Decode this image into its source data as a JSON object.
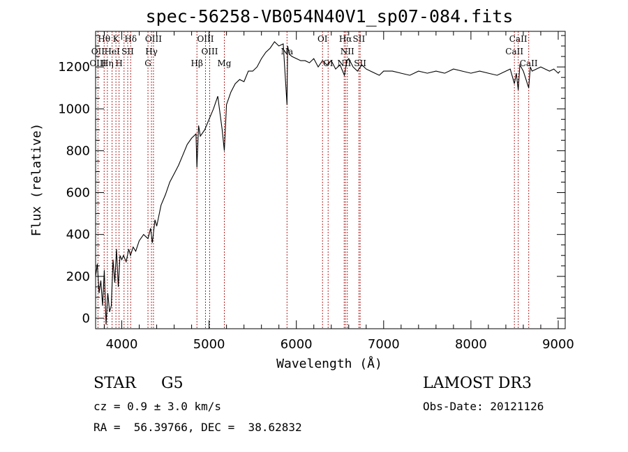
{
  "chart_data": {
    "type": "line",
    "title": "spec-56258-VB054N40V1_sp07-084.fits",
    "xlabel": "Wavelength (Å)",
    "ylabel": "Flux (relative)",
    "xlim": [
      3700,
      9080
    ],
    "ylim": [
      -50,
      1370
    ],
    "xticks": [
      4000,
      5000,
      6000,
      7000,
      8000,
      9000
    ],
    "yticks": [
      0,
      200,
      400,
      600,
      800,
      1000,
      1200
    ],
    "series": [
      {
        "name": "flux",
        "color": "#000000",
        "x": [
          3700,
          3720,
          3740,
          3760,
          3780,
          3800,
          3820,
          3840,
          3860,
          3880,
          3900,
          3920,
          3940,
          3960,
          3980,
          4000,
          4020,
          4050,
          4080,
          4100,
          4130,
          4160,
          4200,
          4250,
          4300,
          4330,
          4350,
          4380,
          4400,
          4450,
          4500,
          4550,
          4600,
          4650,
          4700,
          4750,
          4800,
          4850,
          4861,
          4880,
          4900,
          4950,
          5000,
          5050,
          5100,
          5150,
          5175,
          5200,
          5250,
          5300,
          5350,
          5400,
          5450,
          5500,
          5550,
          5600,
          5650,
          5700,
          5750,
          5800,
          5850,
          5893,
          5900,
          5920,
          5950,
          6000,
          6050,
          6100,
          6150,
          6200,
          6250,
          6300,
          6350,
          6400,
          6450,
          6500,
          6550,
          6563,
          6580,
          6600,
          6650,
          6700,
          6750,
          6800,
          6850,
          6900,
          6950,
          7000,
          7100,
          7200,
          7300,
          7400,
          7500,
          7600,
          7700,
          7800,
          7900,
          8000,
          8100,
          8200,
          8300,
          8400,
          8450,
          8498,
          8520,
          8542,
          8560,
          8600,
          8662,
          8680,
          8700,
          8750,
          8800,
          8850,
          8900,
          8950,
          9000,
          9020
        ],
        "y": [
          200,
          260,
          120,
          180,
          60,
          230,
          -30,
          120,
          30,
          60,
          280,
          170,
          330,
          150,
          300,
          280,
          300,
          270,
          330,
          300,
          340,
          320,
          370,
          400,
          380,
          430,
          360,
          470,
          440,
          540,
          590,
          650,
          690,
          730,
          780,
          830,
          860,
          880,
          720,
          920,
          870,
          900,
          950,
          1000,
          1060,
          900,
          800,
          1020,
          1080,
          1120,
          1140,
          1130,
          1180,
          1180,
          1200,
          1240,
          1270,
          1290,
          1320,
          1300,
          1310,
          1020,
          1300,
          1260,
          1250,
          1240,
          1230,
          1230,
          1220,
          1240,
          1200,
          1230,
          1210,
          1230,
          1190,
          1210,
          1160,
          1190,
          1230,
          1240,
          1200,
          1180,
          1210,
          1190,
          1180,
          1170,
          1160,
          1180,
          1180,
          1170,
          1160,
          1180,
          1170,
          1180,
          1170,
          1190,
          1180,
          1170,
          1180,
          1170,
          1160,
          1180,
          1190,
          1120,
          1170,
          1090,
          1210,
          1180,
          1100,
          1200,
          1180,
          1190,
          1200,
          1190,
          1180,
          1190,
          1170,
          1180
        ]
      }
    ],
    "vlines": [
      3727,
      3798,
      3835,
      3889,
      3933,
      3969,
      4026,
      4068,
      4102,
      4300,
      4340,
      4363,
      4861,
      4959,
      5007,
      5175,
      5893,
      6300,
      6364,
      6548,
      6563,
      6584,
      6717,
      6731,
      8498,
      8542,
      8662
    ],
    "vline_color": "#b22222",
    "line_labels": [
      {
        "text": "Hθ",
        "x": 3798,
        "row": 0
      },
      {
        "text": "K",
        "x": 3933,
        "row": 0
      },
      {
        "text": "Hδ",
        "x": 4102,
        "row": 0
      },
      {
        "text": "OIII",
        "x": 4363,
        "row": 0
      },
      {
        "text": "OIII",
        "x": 4959,
        "row": 0
      },
      {
        "text": "OI",
        "x": 6300,
        "row": 0
      },
      {
        "text": "Hα",
        "x": 6563,
        "row": 0
      },
      {
        "text": "SII",
        "x": 6717,
        "row": 0
      },
      {
        "text": "CaII",
        "x": 8542,
        "row": 0
      },
      {
        "text": "OII",
        "x": 3727,
        "row": 1
      },
      {
        "text": "HeI",
        "x": 3889,
        "row": 1
      },
      {
        "text": "SII",
        "x": 4068,
        "row": 1
      },
      {
        "text": "Hγ",
        "x": 4340,
        "row": 1
      },
      {
        "text": "OIII",
        "x": 5007,
        "row": 1
      },
      {
        "text": "Na",
        "x": 5893,
        "row": 1
      },
      {
        "text": "NII",
        "x": 6584,
        "row": 1
      },
      {
        "text": "CaII",
        "x": 8498,
        "row": 1
      },
      {
        "text": "OIII",
        "x": 3727,
        "row": 2
      },
      {
        "text": "Hη",
        "x": 3835,
        "row": 2
      },
      {
        "text": "H",
        "x": 3969,
        "row": 2
      },
      {
        "text": "G",
        "x": 4300,
        "row": 2
      },
      {
        "text": "Hβ",
        "x": 4861,
        "row": 2
      },
      {
        "text": "Mg",
        "x": 5175,
        "row": 2
      },
      {
        "text": "OI",
        "x": 6364,
        "row": 2
      },
      {
        "text": "NII",
        "x": 6548,
        "row": 2
      },
      {
        "text": "SII",
        "x": 6731,
        "row": 2
      },
      {
        "text": "CaII",
        "x": 8662,
        "row": 2
      }
    ]
  },
  "info": {
    "class_label": "STAR",
    "subclass": "G5",
    "cz": "cz = 0.9 ± 3.0 km/s",
    "radec": "RA =  56.39766, DEC =  38.62832",
    "survey": "LAMOST DR3",
    "obs_date": "Obs-Date: 20121126"
  }
}
